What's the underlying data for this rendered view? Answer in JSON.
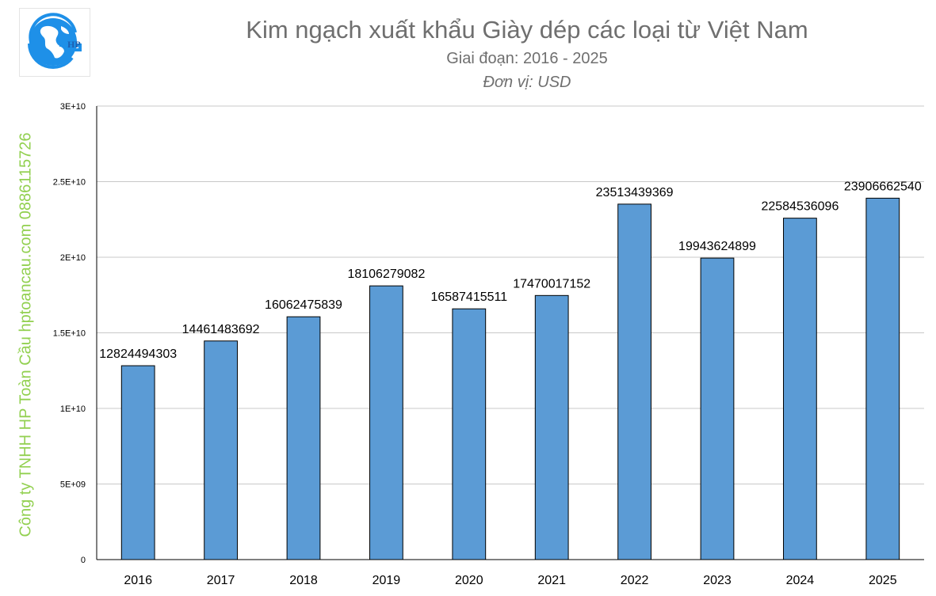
{
  "chart_data": {
    "type": "bar",
    "title": "Kim ngạch xuất khẩu Giày dép các loại từ Việt Nam",
    "subtitle": "Giai đoạn: 2016 - 2025",
    "unit_label": "Đơn vị: USD",
    "xlabel": "",
    "ylabel": "",
    "categories": [
      "2016",
      "2017",
      "2018",
      "2019",
      "2020",
      "2021",
      "2022",
      "2023",
      "2024",
      "2025"
    ],
    "values": [
      12824494303,
      14461483692,
      16062475839,
      18106279082,
      16587415511,
      17470017152,
      23513439369,
      19943624899,
      22584536096,
      23906662540
    ],
    "value_labels": [
      "12824494303",
      "14461483692",
      "16062475839",
      "18106279082",
      "16587415511",
      "17470017152",
      "23513439369",
      "19943624899",
      "22584536096",
      "23906662540"
    ],
    "ylim": [
      0,
      30000000000
    ],
    "yticks": [
      0,
      5000000000,
      10000000000,
      15000000000,
      20000000000,
      25000000000,
      30000000000
    ],
    "ytick_labels": [
      "0",
      "5E+09",
      "1E+10",
      "1.5E+10",
      "2E+10",
      "2.5E+10",
      "3E+10"
    ],
    "grid": true,
    "legend": "none",
    "colors": {
      "bar": "#5b9bd5",
      "bar_edge": "#000000",
      "grid": "#c8c8c8",
      "axis": "#000000"
    }
  },
  "watermark": "Công ty TNHH HP Toàn Cầu hptoancau.com 0886115726",
  "watermark_color": "#92d050",
  "logo": {
    "text": "HP",
    "name": "hp-toan-cau-logo"
  }
}
